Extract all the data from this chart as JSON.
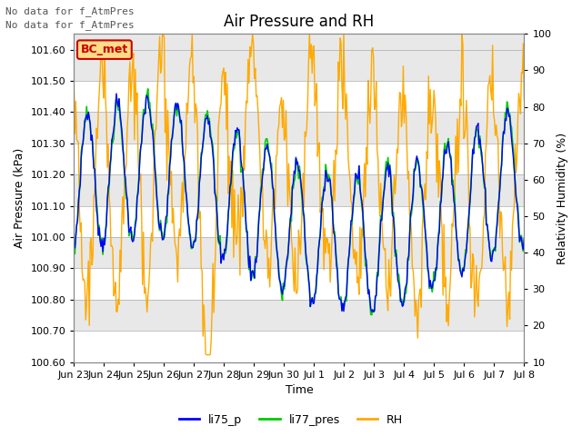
{
  "title": "Air Pressure and RH",
  "xlabel": "Time",
  "ylabel_left": "Air Pressure (kPa)",
  "ylabel_right": "Relativity Humidity (%)",
  "ylim_left": [
    100.6,
    101.65
  ],
  "ylim_right": [
    10,
    100
  ],
  "yticks_left": [
    100.6,
    100.7,
    100.8,
    100.9,
    101.0,
    101.1,
    101.2,
    101.3,
    101.4,
    101.5,
    101.6
  ],
  "yticks_right": [
    10,
    20,
    30,
    40,
    50,
    60,
    70,
    80,
    90,
    100
  ],
  "xtick_labels": [
    "Jun 23",
    "Jun 24",
    "Jun 25",
    "Jun 26",
    "Jun 27",
    "Jun 28",
    "Jun 29",
    "Jun 30",
    "Jul 1",
    "Jul 2",
    "Jul 3",
    "Jul 4",
    "Jul 5",
    "Jul 6",
    "Jul 7",
    "Jul 8"
  ],
  "note_line1": "No data for f_AtmPres",
  "note_line2": "No data for f_AtmPres",
  "box_label": "BC_met",
  "box_color": "#ffdd88",
  "box_border_color": "#cc0000",
  "box_text_color": "#cc0000",
  "color_li75": "#0000ff",
  "color_li77": "#00cc00",
  "color_rh": "#ffaa00",
  "legend_labels": [
    "li75_p",
    "li77_pres",
    "RH"
  ],
  "bg_color": "#ffffff",
  "plot_bg_color": "#e8e8e8",
  "band_color": "#f5f5f5",
  "title_fontsize": 12,
  "axis_fontsize": 9,
  "tick_fontsize": 8,
  "note_fontsize": 8,
  "n_points": 500,
  "rh_min": 10,
  "rh_max": 100,
  "p_min": 100.6,
  "p_max": 101.65
}
